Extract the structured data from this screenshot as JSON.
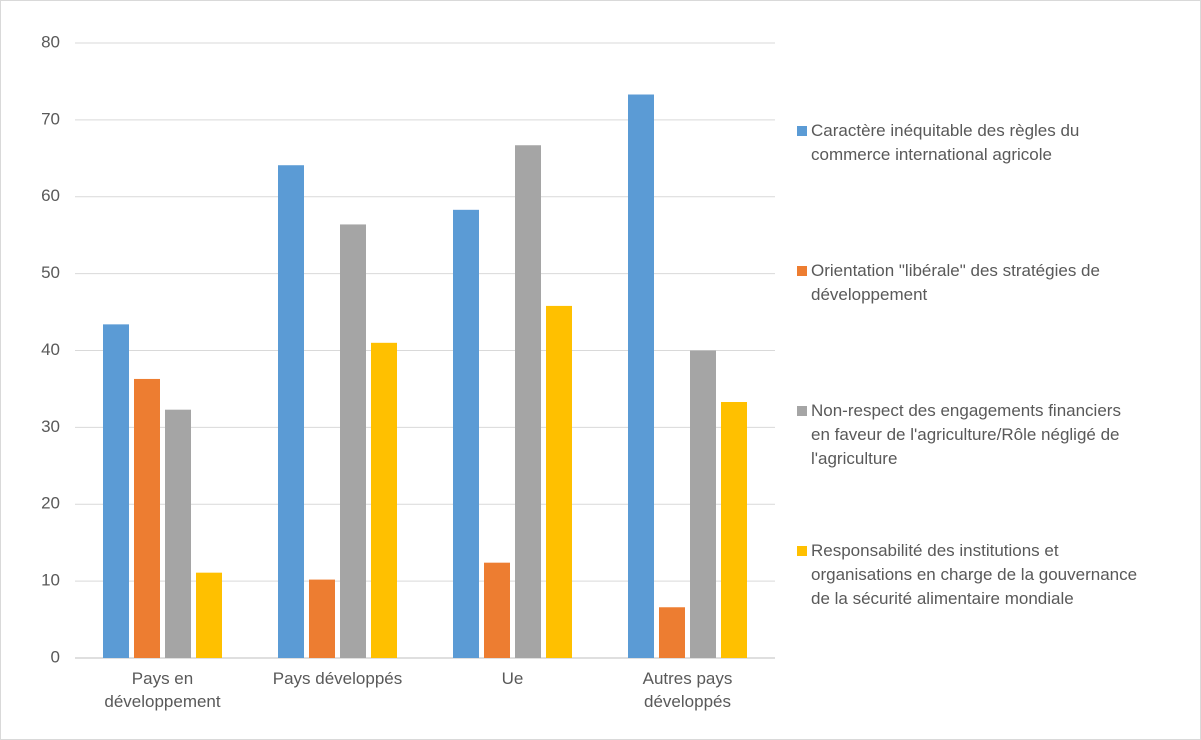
{
  "chart_data": {
    "type": "bar",
    "categories": [
      "Pays en développement",
      "Pays développés",
      "Ue",
      "Autres pays développés"
    ],
    "series": [
      {
        "name": "Caractère inéquitable des règles du commerce international agricole",
        "color": "#5b9bd5",
        "values": [
          43.4,
          64.1,
          58.3,
          73.3
        ]
      },
      {
        "name": "Orientation \"libérale\" des stratégies de développement",
        "color": "#ed7d31",
        "values": [
          36.3,
          10.2,
          12.4,
          6.6
        ]
      },
      {
        "name": "Non-respect des engagements financiers en faveur de l'agriculture/Rôle négligé de l'agriculture",
        "color": "#a5a5a5",
        "values": [
          32.3,
          56.4,
          66.7,
          40
        ]
      },
      {
        "name": "Responsabilité des institutions et organisations en charge de la gouvernance de la sécurité alimentaire mondiale",
        "color": "#ffc000",
        "values": [
          11.1,
          41,
          45.8,
          33.3
        ]
      }
    ],
    "ylim": [
      0,
      80
    ],
    "yticks": [
      0,
      10,
      20,
      30,
      40,
      50,
      60,
      70,
      80
    ],
    "grid": true,
    "legend": "right"
  }
}
